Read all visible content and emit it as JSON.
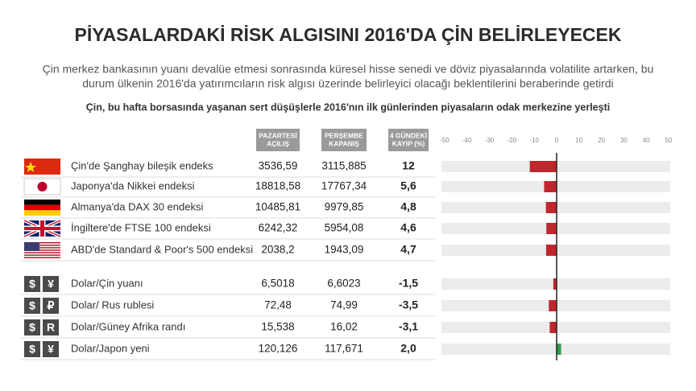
{
  "title": "PİYASALARDAKİ RİSK ALGISINI 2016'DA ÇİN BELİRLEYECEK",
  "subtitle_lines": [
    "Çin merkez bankasının yuanı devalüe etmesi sonrasında küresel hisse senedi ve döviz piyasalarında volatilite artarken, bu",
    "durum ülkenin 2016'da yatırımcıların risk algısı üzerinde belirleyici olacağı beklentilerini beraberinde getirdi"
  ],
  "note": "Çin, bu hafta borsasında yaşanan sert düşüşlerle 2016'nın ilk günlerinden piyasaların odak merkezine yerleşti",
  "table": {
    "columns": [
      [
        "PAZARTESİ",
        "AÇILIŞ"
      ],
      [
        "PERŞEMBE",
        "KAPANIŞ"
      ],
      [
        "4 GÜNDEKİ",
        "KAYIP (%)"
      ]
    ],
    "rows": [
      {
        "name": "Çin'de Şanghay bileşik endeks",
        "open": "3536,59",
        "close": "3115,885",
        "loss": "12"
      },
      {
        "name": "Japonya'da Nikkei endeksi",
        "open": "18818,58",
        "close": "17767,34",
        "loss": "5,6"
      },
      {
        "name": "Almanya'da DAX 30 endeksi",
        "open": "10485,81",
        "close": "9979,85",
        "loss": "4,8"
      },
      {
        "name": "İngiltere'de FTSE 100 endeksi",
        "open": "6242,32",
        "close": "5954,08",
        "loss": "4,6"
      },
      {
        "name": "ABD'de Standard & Poor's 500 endeksi",
        "open": "2038,2",
        "close": "1943,09",
        "loss": "4,7"
      },
      {
        "name": "Dolar/Çin yuanı",
        "symbols": [
          "$",
          "¥"
        ],
        "open": "6,5018",
        "close": "6,6023",
        "loss": "-1,5"
      },
      {
        "name": "Dolar/ Rus rublesi",
        "symbols": [
          "$",
          "₽"
        ],
        "open": "72,48",
        "close": "74,99",
        "loss": "-3,5"
      },
      {
        "name": "Dolar/Güney Afrika randı",
        "symbols": [
          "$",
          "R"
        ],
        "open": "15,538",
        "close": "16,02",
        "loss": "-3,1"
      },
      {
        "name": "Dolar/Japon yeni",
        "symbols": [
          "$",
          "¥"
        ],
        "open": "120,126",
        "close": "117,671",
        "loss": "2,0"
      }
    ]
  },
  "chart_data": {
    "type": "bar",
    "orientation": "horizontal",
    "values": [
      -12,
      -5.6,
      -4.8,
      -4.6,
      -4.7,
      -1.5,
      -3.5,
      -3.1,
      2.0
    ],
    "negative_color": "#c0272d",
    "positive_color": "#2e9e4a",
    "track_color": "#ececec",
    "xlim": [
      -50,
      50
    ],
    "xticks": [
      -50,
      -40,
      -30,
      -20,
      -10,
      0,
      10,
      20,
      30,
      40,
      50
    ]
  }
}
